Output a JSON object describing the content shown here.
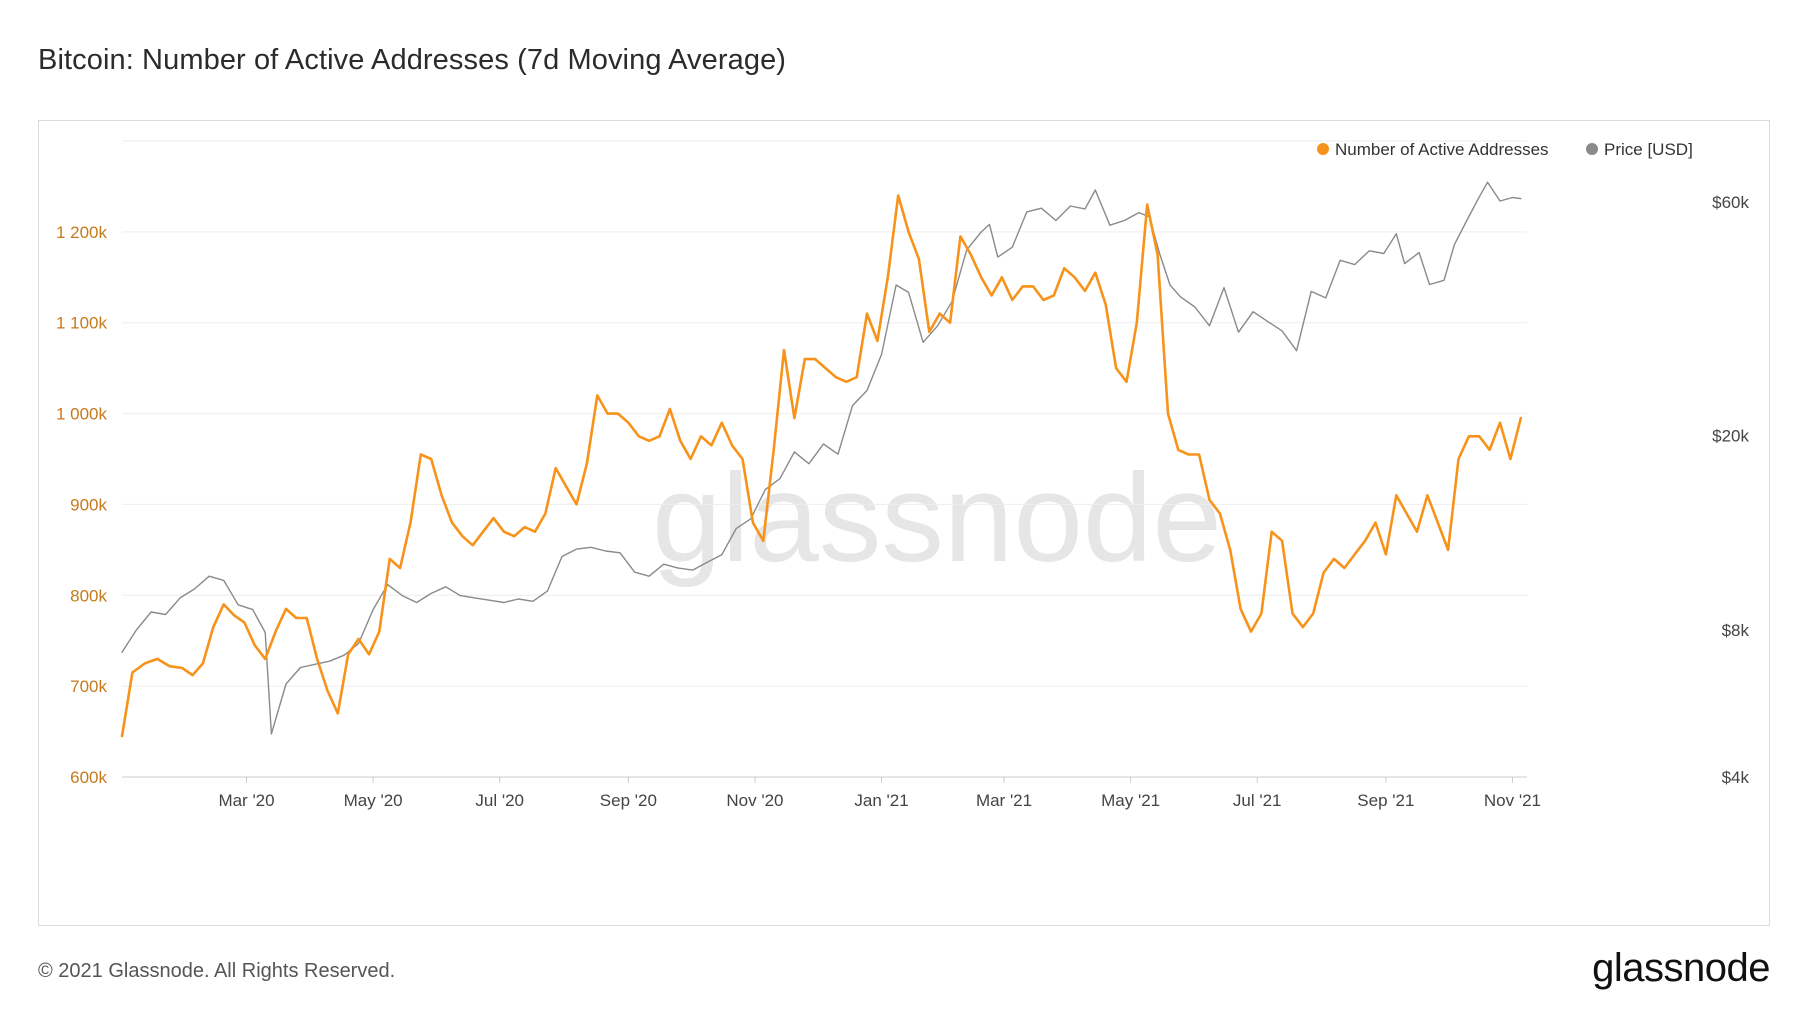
{
  "page": {
    "title": "Bitcoin: Number of Active Addresses (7d Moving Average)",
    "footer": "© 2021 Glassnode. All Rights Reserved.",
    "brand": "glassnode",
    "watermark": "glassnode"
  },
  "colors": {
    "addresses": "#f7931a",
    "price": "#8a8a8a",
    "grid": "#eeeeee",
    "left_axis_text": "#c77a1c",
    "right_axis_text": "#444444",
    "watermark": "#e6e6e6"
  },
  "chart_data": {
    "type": "line",
    "title": "Bitcoin: Number of Active Addresses (7d Moving Average)",
    "legend": {
      "position": "top-right",
      "entries": [
        {
          "name": "Number of Active Addresses",
          "color": "#f7931a"
        },
        {
          "name": "Price [USD]",
          "color": "#8a8a8a"
        }
      ]
    },
    "x_axis": {
      "range": [
        "2020-01-01",
        "2021-11-08"
      ],
      "ticks": [
        {
          "date": "2020-03-01",
          "label": "Mar '20"
        },
        {
          "date": "2020-05-01",
          "label": "May '20"
        },
        {
          "date": "2020-07-01",
          "label": "Jul '20"
        },
        {
          "date": "2020-09-01",
          "label": "Sep '20"
        },
        {
          "date": "2020-11-01",
          "label": "Nov '20"
        },
        {
          "date": "2021-01-01",
          "label": "Jan '21"
        },
        {
          "date": "2021-03-01",
          "label": "Mar '21"
        },
        {
          "date": "2021-05-01",
          "label": "May '21"
        },
        {
          "date": "2021-07-01",
          "label": "Jul '21"
        },
        {
          "date": "2021-09-01",
          "label": "Sep '21"
        },
        {
          "date": "2021-11-01",
          "label": "Nov '21"
        }
      ]
    },
    "y_left": {
      "name": "Number of Active Addresses",
      "range": [
        600000,
        1300000
      ],
      "ticks": [
        {
          "value": 600000,
          "label": "600k"
        },
        {
          "value": 700000,
          "label": "700k"
        },
        {
          "value": 800000,
          "label": "800k"
        },
        {
          "value": 900000,
          "label": "900k"
        },
        {
          "value": 1000000,
          "label": "1 000k"
        },
        {
          "value": 1100000,
          "label": "1 100k"
        },
        {
          "value": 1200000,
          "label": "1 200k"
        }
      ]
    },
    "y_right": {
      "name": "Price [USD]",
      "scale": "log",
      "range": [
        4000,
        80000
      ],
      "ticks": [
        {
          "value": 4000,
          "label": "$4k"
        },
        {
          "value": 8000,
          "label": "$8k"
        },
        {
          "value": 20000,
          "label": "$20k"
        },
        {
          "value": 60000,
          "label": "$60k"
        }
      ]
    },
    "series": [
      {
        "name": "Number of Active Addresses",
        "axis": "left",
        "points": [
          [
            "2020-01-01",
            645000
          ],
          [
            "2020-01-06",
            715000
          ],
          [
            "2020-01-12",
            725000
          ],
          [
            "2020-01-18",
            730000
          ],
          [
            "2020-01-24",
            722000
          ],
          [
            "2020-01-30",
            720000
          ],
          [
            "2020-02-04",
            712000
          ],
          [
            "2020-02-09",
            725000
          ],
          [
            "2020-02-14",
            765000
          ],
          [
            "2020-02-19",
            790000
          ],
          [
            "2020-02-24",
            778000
          ],
          [
            "2020-02-29",
            770000
          ],
          [
            "2020-03-05",
            745000
          ],
          [
            "2020-03-10",
            730000
          ],
          [
            "2020-03-15",
            760000
          ],
          [
            "2020-03-20",
            785000
          ],
          [
            "2020-03-25",
            775000
          ],
          [
            "2020-03-30",
            775000
          ],
          [
            "2020-04-04",
            730000
          ],
          [
            "2020-04-09",
            695000
          ],
          [
            "2020-04-14",
            670000
          ],
          [
            "2020-04-19",
            735000
          ],
          [
            "2020-04-24",
            752000
          ],
          [
            "2020-04-29",
            735000
          ],
          [
            "2020-05-04",
            760000
          ],
          [
            "2020-05-09",
            840000
          ],
          [
            "2020-05-14",
            830000
          ],
          [
            "2020-05-19",
            880000
          ],
          [
            "2020-05-24",
            955000
          ],
          [
            "2020-05-29",
            950000
          ],
          [
            "2020-06-03",
            910000
          ],
          [
            "2020-06-08",
            880000
          ],
          [
            "2020-06-13",
            865000
          ],
          [
            "2020-06-18",
            855000
          ],
          [
            "2020-06-23",
            870000
          ],
          [
            "2020-06-28",
            885000
          ],
          [
            "2020-07-03",
            870000
          ],
          [
            "2020-07-08",
            865000
          ],
          [
            "2020-07-13",
            875000
          ],
          [
            "2020-07-18",
            870000
          ],
          [
            "2020-07-23",
            890000
          ],
          [
            "2020-07-28",
            940000
          ],
          [
            "2020-08-02",
            920000
          ],
          [
            "2020-08-07",
            900000
          ],
          [
            "2020-08-12",
            945000
          ],
          [
            "2020-08-17",
            1020000
          ],
          [
            "2020-08-22",
            1000000
          ],
          [
            "2020-08-27",
            1000000
          ],
          [
            "2020-09-01",
            990000
          ],
          [
            "2020-09-06",
            975000
          ],
          [
            "2020-09-11",
            970000
          ],
          [
            "2020-09-16",
            975000
          ],
          [
            "2020-09-21",
            1005000
          ],
          [
            "2020-09-26",
            970000
          ],
          [
            "2020-10-01",
            950000
          ],
          [
            "2020-10-06",
            975000
          ],
          [
            "2020-10-11",
            965000
          ],
          [
            "2020-10-16",
            990000
          ],
          [
            "2020-10-21",
            965000
          ],
          [
            "2020-10-26",
            950000
          ],
          [
            "2020-10-31",
            880000
          ],
          [
            "2020-11-05",
            860000
          ],
          [
            "2020-11-10",
            960000
          ],
          [
            "2020-11-15",
            1070000
          ],
          [
            "2020-11-20",
            995000
          ],
          [
            "2020-11-25",
            1060000
          ],
          [
            "2020-11-30",
            1060000
          ],
          [
            "2020-12-05",
            1050000
          ],
          [
            "2020-12-10",
            1040000
          ],
          [
            "2020-12-15",
            1035000
          ],
          [
            "2020-12-20",
            1040000
          ],
          [
            "2020-12-25",
            1110000
          ],
          [
            "2020-12-30",
            1080000
          ],
          [
            "2021-01-04",
            1150000
          ],
          [
            "2021-01-09",
            1240000
          ],
          [
            "2021-01-14",
            1200000
          ],
          [
            "2021-01-19",
            1170000
          ],
          [
            "2021-01-24",
            1090000
          ],
          [
            "2021-01-29",
            1110000
          ],
          [
            "2021-02-03",
            1100000
          ],
          [
            "2021-02-08",
            1195000
          ],
          [
            "2021-02-13",
            1175000
          ],
          [
            "2021-02-18",
            1150000
          ],
          [
            "2021-02-23",
            1130000
          ],
          [
            "2021-02-28",
            1150000
          ],
          [
            "2021-03-05",
            1125000
          ],
          [
            "2021-03-10",
            1140000
          ],
          [
            "2021-03-15",
            1140000
          ],
          [
            "2021-03-20",
            1125000
          ],
          [
            "2021-03-25",
            1130000
          ],
          [
            "2021-03-30",
            1160000
          ],
          [
            "2021-04-04",
            1150000
          ],
          [
            "2021-04-09",
            1135000
          ],
          [
            "2021-04-14",
            1155000
          ],
          [
            "2021-04-19",
            1120000
          ],
          [
            "2021-04-24",
            1050000
          ],
          [
            "2021-04-29",
            1035000
          ],
          [
            "2021-05-04",
            1100000
          ],
          [
            "2021-05-09",
            1230000
          ],
          [
            "2021-05-14",
            1175000
          ],
          [
            "2021-05-19",
            1000000
          ],
          [
            "2021-05-24",
            960000
          ],
          [
            "2021-05-29",
            955000
          ],
          [
            "2021-06-03",
            955000
          ],
          [
            "2021-06-08",
            905000
          ],
          [
            "2021-06-13",
            890000
          ],
          [
            "2021-06-18",
            850000
          ],
          [
            "2021-06-23",
            785000
          ],
          [
            "2021-06-28",
            760000
          ],
          [
            "2021-07-03",
            780000
          ],
          [
            "2021-07-08",
            870000
          ],
          [
            "2021-07-13",
            860000
          ],
          [
            "2021-07-18",
            780000
          ],
          [
            "2021-07-23",
            765000
          ],
          [
            "2021-07-28",
            780000
          ],
          [
            "2021-08-02",
            825000
          ],
          [
            "2021-08-07",
            840000
          ],
          [
            "2021-08-12",
            830000
          ],
          [
            "2021-08-17",
            845000
          ],
          [
            "2021-08-22",
            860000
          ],
          [
            "2021-08-27",
            880000
          ],
          [
            "2021-09-01",
            845000
          ],
          [
            "2021-09-06",
            910000
          ],
          [
            "2021-09-11",
            890000
          ],
          [
            "2021-09-16",
            870000
          ],
          [
            "2021-09-21",
            910000
          ],
          [
            "2021-09-26",
            880000
          ],
          [
            "2021-10-01",
            850000
          ],
          [
            "2021-10-06",
            950000
          ],
          [
            "2021-10-11",
            975000
          ],
          [
            "2021-10-16",
            975000
          ],
          [
            "2021-10-21",
            960000
          ],
          [
            "2021-10-26",
            990000
          ],
          [
            "2021-10-31",
            950000
          ],
          [
            "2021-11-05",
            995000
          ]
        ]
      },
      {
        "name": "Price [USD]",
        "axis": "right",
        "points": [
          [
            "2020-01-01",
            7200
          ],
          [
            "2020-01-08",
            8000
          ],
          [
            "2020-01-15",
            8700
          ],
          [
            "2020-01-22",
            8600
          ],
          [
            "2020-01-29",
            9300
          ],
          [
            "2020-02-05",
            9700
          ],
          [
            "2020-02-12",
            10300
          ],
          [
            "2020-02-19",
            10100
          ],
          [
            "2020-02-26",
            9000
          ],
          [
            "2020-03-04",
            8800
          ],
          [
            "2020-03-10",
            7900
          ],
          [
            "2020-03-13",
            4900
          ],
          [
            "2020-03-20",
            6200
          ],
          [
            "2020-03-27",
            6700
          ],
          [
            "2020-04-03",
            6800
          ],
          [
            "2020-04-10",
            6900
          ],
          [
            "2020-04-17",
            7100
          ],
          [
            "2020-04-24",
            7500
          ],
          [
            "2020-05-01",
            8800
          ],
          [
            "2020-05-08",
            9900
          ],
          [
            "2020-05-15",
            9400
          ],
          [
            "2020-05-22",
            9100
          ],
          [
            "2020-05-29",
            9500
          ],
          [
            "2020-06-05",
            9800
          ],
          [
            "2020-06-12",
            9400
          ],
          [
            "2020-06-19",
            9300
          ],
          [
            "2020-06-26",
            9200
          ],
          [
            "2020-07-03",
            9100
          ],
          [
            "2020-07-10",
            9250
          ],
          [
            "2020-07-17",
            9150
          ],
          [
            "2020-07-24",
            9600
          ],
          [
            "2020-07-31",
            11300
          ],
          [
            "2020-08-07",
            11700
          ],
          [
            "2020-08-14",
            11800
          ],
          [
            "2020-08-21",
            11600
          ],
          [
            "2020-08-28",
            11500
          ],
          [
            "2020-09-04",
            10500
          ],
          [
            "2020-09-11",
            10300
          ],
          [
            "2020-09-18",
            10900
          ],
          [
            "2020-09-25",
            10700
          ],
          [
            "2020-10-02",
            10600
          ],
          [
            "2020-10-09",
            11000
          ],
          [
            "2020-10-16",
            11400
          ],
          [
            "2020-10-23",
            12900
          ],
          [
            "2020-10-30",
            13500
          ],
          [
            "2020-11-06",
            15500
          ],
          [
            "2020-11-13",
            16300
          ],
          [
            "2020-11-20",
            18500
          ],
          [
            "2020-11-27",
            17500
          ],
          [
            "2020-12-04",
            19200
          ],
          [
            "2020-12-11",
            18300
          ],
          [
            "2020-12-18",
            23000
          ],
          [
            "2020-12-25",
            24700
          ],
          [
            "2021-01-01",
            29300
          ],
          [
            "2021-01-08",
            40600
          ],
          [
            "2021-01-14",
            39200
          ],
          [
            "2021-01-21",
            31000
          ],
          [
            "2021-01-28",
            33500
          ],
          [
            "2021-02-04",
            37600
          ],
          [
            "2021-02-11",
            47900
          ],
          [
            "2021-02-18",
            52100
          ],
          [
            "2021-02-22",
            54000
          ],
          [
            "2021-02-26",
            46300
          ],
          [
            "2021-03-05",
            48500
          ],
          [
            "2021-03-12",
            57300
          ],
          [
            "2021-03-19",
            58300
          ],
          [
            "2021-03-26",
            55000
          ],
          [
            "2021-04-02",
            58900
          ],
          [
            "2021-04-09",
            58100
          ],
          [
            "2021-04-14",
            63500
          ],
          [
            "2021-04-21",
            53800
          ],
          [
            "2021-04-28",
            55000
          ],
          [
            "2021-05-05",
            57100
          ],
          [
            "2021-05-10",
            56000
          ],
          [
            "2021-05-15",
            47000
          ],
          [
            "2021-05-20",
            40600
          ],
          [
            "2021-05-25",
            38400
          ],
          [
            "2021-06-01",
            36600
          ],
          [
            "2021-06-08",
            33500
          ],
          [
            "2021-06-15",
            40100
          ],
          [
            "2021-06-22",
            32500
          ],
          [
            "2021-06-29",
            35800
          ],
          [
            "2021-07-06",
            34200
          ],
          [
            "2021-07-13",
            32700
          ],
          [
            "2021-07-20",
            29800
          ],
          [
            "2021-07-27",
            39400
          ],
          [
            "2021-08-03",
            38200
          ],
          [
            "2021-08-10",
            45600
          ],
          [
            "2021-08-17",
            44700
          ],
          [
            "2021-08-24",
            47700
          ],
          [
            "2021-08-31",
            47100
          ],
          [
            "2021-09-06",
            51700
          ],
          [
            "2021-09-10",
            44900
          ],
          [
            "2021-09-17",
            47300
          ],
          [
            "2021-09-22",
            40700
          ],
          [
            "2021-09-29",
            41500
          ],
          [
            "2021-10-04",
            49100
          ],
          [
            "2021-10-10",
            55000
          ],
          [
            "2021-10-16",
            61500
          ],
          [
            "2021-10-20",
            65900
          ],
          [
            "2021-10-26",
            60300
          ],
          [
            "2021-11-01",
            61300
          ],
          [
            "2021-11-05",
            61000
          ]
        ]
      }
    ]
  }
}
